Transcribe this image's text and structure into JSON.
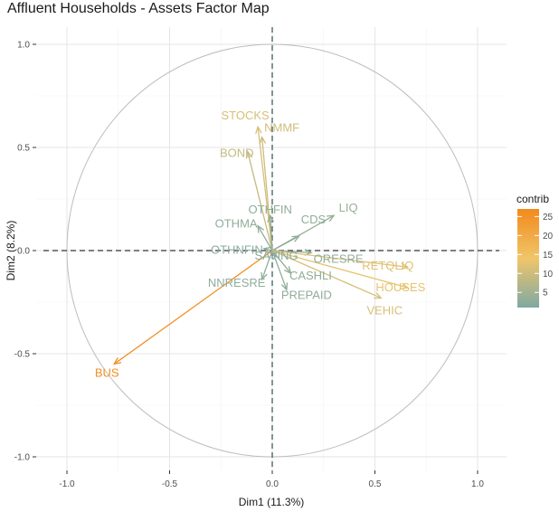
{
  "chart_data": {
    "type": "scatter",
    "subtype": "pca-variable-factor-map",
    "title": "Affluent Households - Assets Factor Map",
    "xlabel": "Dim1 (11.3%)",
    "ylabel": "Dim2 (8.2%)",
    "xlim": [
      -1.1,
      1.1
    ],
    "ylim": [
      -1.05,
      1.05
    ],
    "xticks": [
      "-1.0",
      "-0.5",
      "0.0",
      "0.5",
      "1.0"
    ],
    "yticks": [
      "-1.0",
      "-0.5",
      "0.0",
      "0.5",
      "1.0"
    ],
    "grid": true,
    "correlation_circle": true,
    "legend": {
      "title": "contrib",
      "position": "right",
      "ticks": [
        "25",
        "20",
        "15",
        "10",
        "5"
      ],
      "range": [
        1,
        27
      ],
      "color_low": "#7fa9a3",
      "color_mid": "#f0c56a",
      "color_high": "#f28a1b"
    },
    "variables": [
      {
        "name": "STOCKS",
        "x": -0.07,
        "y": 0.6,
        "contrib": 11
      },
      {
        "name": "NMMF",
        "x": -0.05,
        "y": 0.55,
        "contrib": 10
      },
      {
        "name": "BOND",
        "x": -0.12,
        "y": 0.48,
        "contrib": 9
      },
      {
        "name": "OTHFIN",
        "x": -0.01,
        "y": 0.17,
        "contrib": 3
      },
      {
        "name": "LIQ",
        "x": 0.3,
        "y": 0.17,
        "contrib": 4
      },
      {
        "name": "OTHMA",
        "x": -0.07,
        "y": 0.12,
        "contrib": 3
      },
      {
        "name": "CDS",
        "x": 0.13,
        "y": 0.07,
        "contrib": 3
      },
      {
        "name": "OTHNFIN",
        "x": -0.04,
        "y": 0.01,
        "contrib": 2
      },
      {
        "name": "ORESRE",
        "x": 0.19,
        "y": -0.01,
        "contrib": 3
      },
      {
        "name": "RETQLIQ",
        "x": 0.66,
        "y": -0.08,
        "contrib": 12
      },
      {
        "name": "HOUSES",
        "x": 0.66,
        "y": -0.18,
        "contrib": 13
      },
      {
        "name": "SAVING",
        "x": 0.02,
        "y": -0.03,
        "contrib": 2
      },
      {
        "name": "NNRESRE",
        "x": -0.05,
        "y": -0.14,
        "contrib": 3
      },
      {
        "name": "CASHLI",
        "x": 0.09,
        "y": -0.11,
        "contrib": 3
      },
      {
        "name": "PREPAID",
        "x": 0.07,
        "y": -0.19,
        "contrib": 3
      },
      {
        "name": "VEHIC",
        "x": 0.53,
        "y": -0.23,
        "contrib": 11
      },
      {
        "name": "BUS",
        "x": -0.77,
        "y": -0.55,
        "contrib": 26
      }
    ]
  }
}
